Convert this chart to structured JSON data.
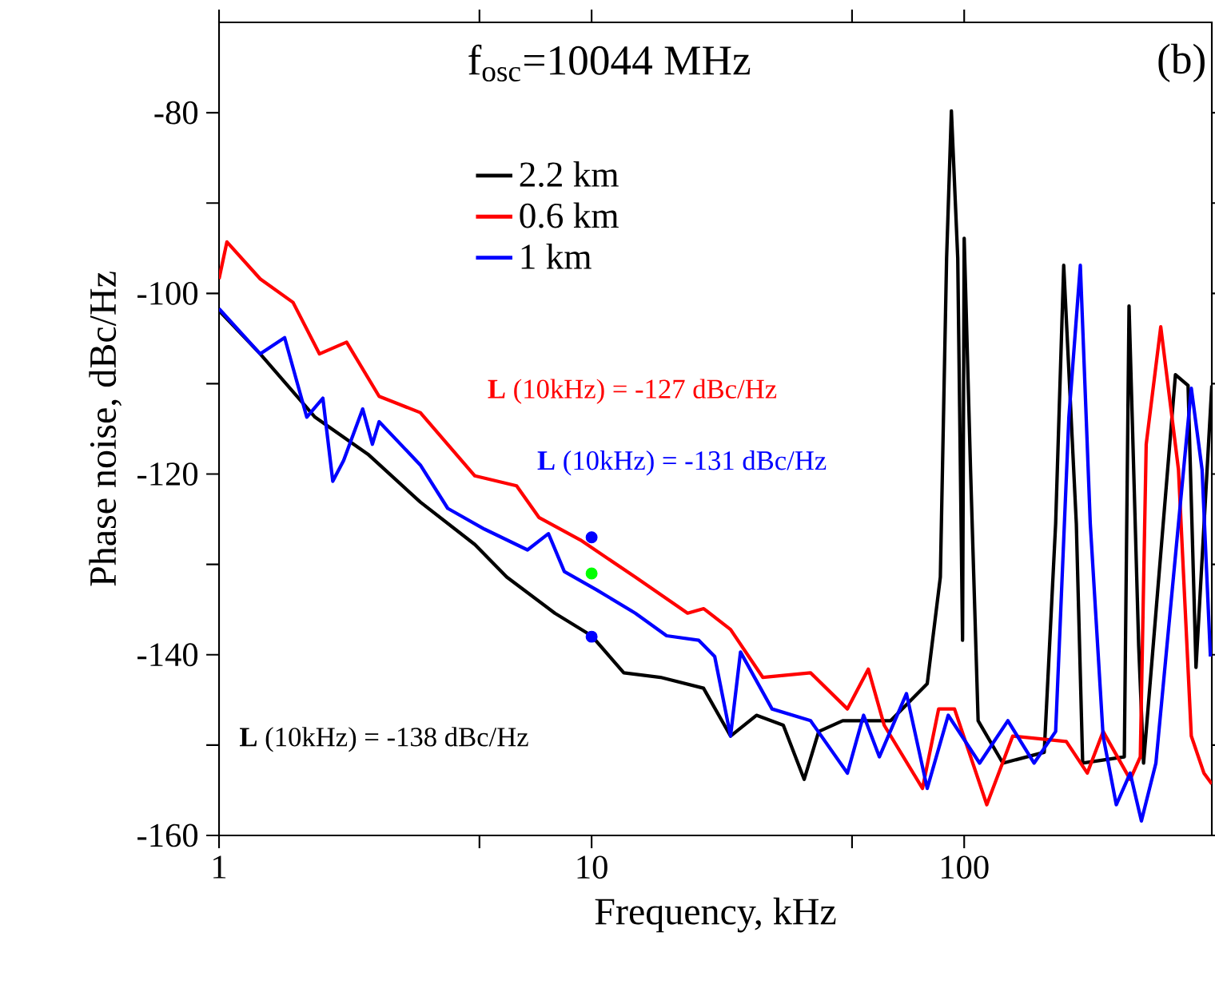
{
  "chart_data": {
    "type": "line",
    "title": "f$_{osc}$=10044 MHz",
    "xlabel": "Frequency, kHz",
    "ylabel": "Phase noise, dBc/Hz",
    "log": "x",
    "xlim": [
      1,
      462
    ],
    "xticks": [
      1,
      {
        "value": 5,
        "label": null
      },
      10,
      {
        "value": 50,
        "label": null
      },
      100
    ],
    "ylim": [
      -160,
      -70
    ],
    "yticks": [
      -160,
      {
        "value": -150,
        "label": null
      },
      -140,
      {
        "value": -130,
        "label": null
      },
      -120,
      {
        "value": -110,
        "label": null
      },
      -100,
      {
        "value": -90,
        "label": null
      },
      -80
    ],
    "legend": "top",
    "annotations": [
      "**L** (10kHz) = -127 dBc/Hz",
      "**L** (10kHz) = -131 dBc/Hz",
      "**L** (10kHz) = -138 dBc/Hz",
      "(b)"
    ],
    "series": [
      {
        "name": "2.2 km",
        "color": "#000000",
        "x": [
          1,
          1.29,
          1.81,
          2.51,
          3.47,
          4.86,
          5.92,
          7.97,
          10,
          12.2,
          15.3,
          19.97,
          23.6,
          27.7,
          32.7,
          37.2,
          40.7,
          47.2,
          63.5,
          79.6,
          86.3,
          89.7,
          92.4,
          96.1,
          99,
          100,
          104,
          109,
          127,
          164,
          176,
          185,
          200,
          208,
          269,
          277,
          294,
          303,
          369,
          399,
          419,
          462
        ],
        "values": [
          -101.9,
          -106.7,
          -113.7,
          -117.8,
          -123.1,
          -127.8,
          -131.4,
          -135.4,
          -137.9,
          -142,
          -142.5,
          -143.7,
          -149,
          -146.7,
          -147.8,
          -153.8,
          -148.5,
          -147.3,
          -147.3,
          -143.2,
          -131.4,
          -96.1,
          -79.8,
          -96.1,
          -138.4,
          -93.9,
          -119.5,
          -147.3,
          -152,
          -150.8,
          -125.5,
          -96.9,
          -125.5,
          -152,
          -151.3,
          -101.4,
          -139,
          -152,
          -109,
          -110.2,
          -141.4,
          -110.2
        ]
      },
      {
        "name": "0.6 km",
        "color": "#ff0000",
        "x": [
          1,
          1.05,
          1.29,
          1.58,
          1.86,
          2.2,
          2.69,
          3.47,
          4.86,
          6.29,
          7.22,
          9.33,
          13.1,
          18.1,
          20,
          23.6,
          28.8,
          38.7,
          48.6,
          55.3,
          61,
          77.3,
          85.4,
          94.2,
          115,
          135,
          188,
          214,
          236,
          279,
          297,
          308,
          337,
          376,
          407,
          440,
          462
        ],
        "values": [
          -98.4,
          -94.3,
          -98.4,
          -101,
          -106.7,
          -105.4,
          -111.4,
          -113.2,
          -120.2,
          -121.3,
          -124.8,
          -127.3,
          -131.4,
          -135.4,
          -134.9,
          -137.2,
          -142.5,
          -142,
          -146,
          -141.6,
          -147.8,
          -154.8,
          -146,
          -146,
          -156.6,
          -149,
          -149.6,
          -153.1,
          -148.5,
          -153.8,
          -151.3,
          -116.7,
          -103.7,
          -119.5,
          -149,
          -153.1,
          -154.3
        ]
      },
      {
        "name": "1 km",
        "color": "#0000ff",
        "x": [
          1,
          1.29,
          1.5,
          1.72,
          1.9,
          2.02,
          2.16,
          2.43,
          2.58,
          2.69,
          3.47,
          4.11,
          5.16,
          6.73,
          7.66,
          8.45,
          10.3,
          13.1,
          15.9,
          19.4,
          21.4,
          23.6,
          25.1,
          30.5,
          38.7,
          48.6,
          53.7,
          59.2,
          70,
          79.6,
          90.6,
          110,
          131,
          154,
          176,
          191,
          205,
          218,
          236,
          256,
          279,
          299,
          327,
          376,
          407,
          435,
          458
        ],
        "values": [
          -101.7,
          -106.7,
          -104.9,
          -113.7,
          -111.6,
          -120.8,
          -118.5,
          -112.8,
          -116.7,
          -114.2,
          -119,
          -123.8,
          -126.1,
          -128.4,
          -126.6,
          -130.8,
          -132.8,
          -135.4,
          -137.9,
          -138.4,
          -140.2,
          -149,
          -139.7,
          -146,
          -147.3,
          -153.1,
          -146.7,
          -151.3,
          -144.3,
          -154.8,
          -146.7,
          -152,
          -147.3,
          -152,
          -148.5,
          -113.7,
          -96.9,
          -125.5,
          -149,
          -156.6,
          -153.1,
          -158.4,
          -152,
          -125.5,
          -110.5,
          -119.5,
          -140.2
        ]
      },
      {
        "type": "scatter",
        "x": [
          10,
          10,
          10
        ],
        "values": [
          -127,
          -131,
          -138
        ],
        "colors": [
          "#0000ff",
          "#00ff00",
          "#0000ff"
        ]
      }
    ]
  }
}
